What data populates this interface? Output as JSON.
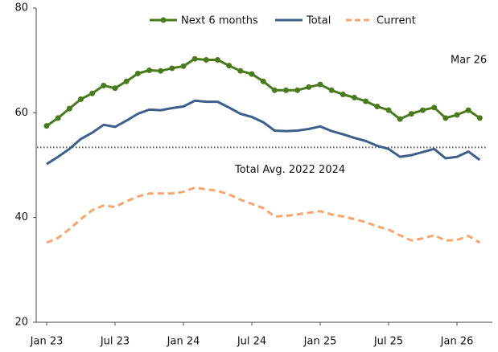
{
  "chart_data": {
    "type": "line",
    "categories": [
      "Jan 23",
      null,
      null,
      null,
      null,
      null,
      "Jul 23",
      null,
      null,
      null,
      null,
      null,
      "Jan 24",
      null,
      null,
      null,
      null,
      null,
      "Jul 24",
      null,
      null,
      null,
      null,
      null,
      "Jan 25",
      null,
      null,
      null,
      null,
      null,
      "Jul 25",
      null,
      null,
      null,
      null,
      null,
      "Jan 26",
      null,
      null
    ],
    "series": [
      {
        "name": "Next 6 months",
        "color": "#4a7a1e",
        "marker": true,
        "dashed": false,
        "values": [
          57.5,
          59,
          60.8,
          62.6,
          63.7,
          65.2,
          64.7,
          66,
          67.5,
          68.1,
          68,
          68.5,
          68.9,
          70.3,
          70.1,
          70.1,
          69,
          68,
          67.4,
          66,
          64.3,
          64.3,
          64.3,
          64.9,
          65.4,
          64.3,
          63.5,
          62.9,
          62.2,
          61.2,
          60.5,
          58.8,
          59.8,
          60.5,
          61,
          59,
          59.6,
          60.5,
          59
        ]
      },
      {
        "name": "Total",
        "color": "#3d5f8a",
        "marker": false,
        "dashed": false,
        "values": [
          50.2,
          51.6,
          53.1,
          55,
          56.2,
          57.7,
          57.3,
          58.5,
          59.8,
          60.6,
          60.5,
          60.9,
          61.2,
          62.3,
          62.1,
          62.1,
          61,
          59.8,
          59.2,
          58.2,
          56.6,
          56.5,
          56.6,
          56.9,
          57.4,
          56.5,
          55.9,
          55.2,
          54.6,
          53.7,
          53.1,
          51.6,
          51.9,
          52.5,
          53.1,
          51.3,
          51.6,
          52.6,
          51
        ]
      },
      {
        "name": "Current",
        "color": "#f7a56e",
        "marker": false,
        "dashed": true,
        "values": [
          35.2,
          36.1,
          37.8,
          39.7,
          41.4,
          42.3,
          42,
          43.1,
          44,
          44.6,
          44.6,
          44.6,
          44.9,
          45.7,
          45.4,
          45.1,
          44.4,
          43.4,
          42.6,
          41.8,
          40.2,
          40.3,
          40.6,
          40.9,
          41.2,
          40.6,
          40.2,
          39.7,
          39.1,
          38.3,
          37.7,
          36.6,
          35.6,
          36,
          36.6,
          35.6,
          35.7,
          36.5,
          35.2
        ]
      }
    ],
    "reference_line": {
      "value": 53.4,
      "label": "Total Avg. 2022 2024",
      "color": "#555555"
    },
    "annotation": "Mar 26",
    "ylim": [
      20,
      80
    ],
    "yticks": [
      20,
      40,
      60,
      80
    ],
    "legend": "top"
  }
}
